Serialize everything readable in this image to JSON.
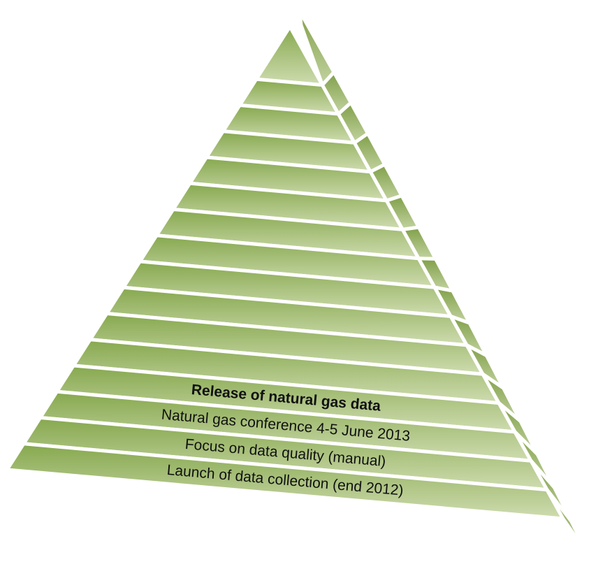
{
  "colors": {
    "top": "#86a84e",
    "bottom": "#cfdcb0",
    "side_top": "#7f9f48",
    "side_bottom": "#c3d3a0",
    "separator": "#ffffff",
    "text": "#111111"
  },
  "layers": [
    {
      "label": ""
    },
    {
      "label": ""
    },
    {
      "label": ""
    },
    {
      "label": ""
    },
    {
      "label": ""
    },
    {
      "label": ""
    },
    {
      "label": ""
    },
    {
      "label": ""
    },
    {
      "label": ""
    },
    {
      "label": ""
    },
    {
      "label": ""
    },
    {
      "label": ""
    },
    {
      "label": "Release of natural gas data",
      "bold": true
    },
    {
      "label": "Natural gas conference 4-5 June 2013"
    },
    {
      "label": "Focus on data quality (manual)"
    },
    {
      "label": "Launch of data collection (end 2012)"
    }
  ]
}
